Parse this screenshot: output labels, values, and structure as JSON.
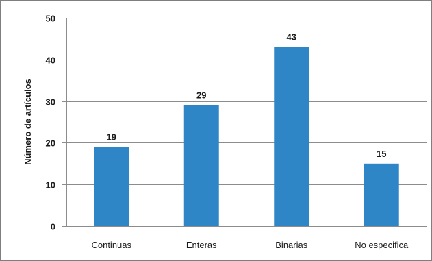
{
  "chart_data": {
    "type": "bar",
    "categories": [
      "Continuas",
      "Enteras",
      "Binarias",
      "No especifica"
    ],
    "values": [
      19,
      29,
      43,
      15
    ],
    "data_labels": [
      "19",
      "29",
      "43",
      "15"
    ],
    "ylabel": "Número de artículos",
    "ylim": [
      0,
      50
    ],
    "yticks": [
      0,
      10,
      20,
      30,
      40,
      50
    ],
    "ytick_labels": [
      "0",
      "10",
      "20",
      "30",
      "40",
      "50"
    ],
    "grid": true,
    "bar_color": "#2e86c7",
    "grid_color": "#8c8c8c"
  }
}
